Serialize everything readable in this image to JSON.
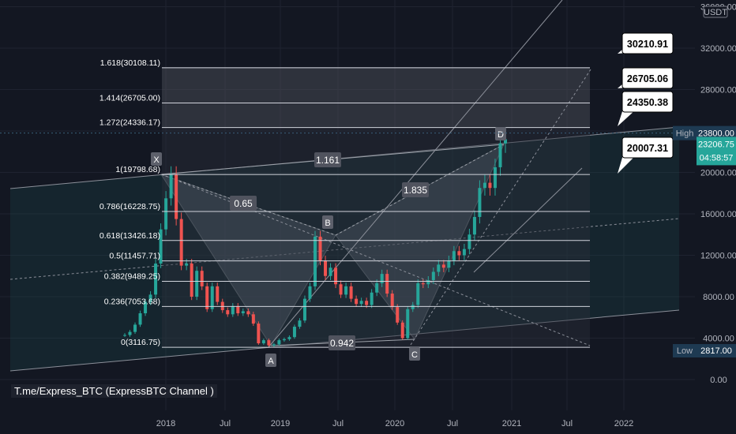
{
  "chart_data": {
    "type": "line",
    "currency": "USDT",
    "y_axis": {
      "min": 0,
      "max": 36000,
      "ticks": [
        "0.00",
        "4000.00",
        "8000.00",
        "12000.00",
        "16000.00",
        "20000.00",
        "24000.00",
        "28000.00",
        "32000.00",
        "36000.00"
      ],
      "values": [
        0,
        4000,
        8000,
        12000,
        16000,
        20000,
        24000,
        28000,
        32000,
        36000
      ]
    },
    "x_axis": {
      "ticks": [
        "2018",
        "Jul",
        "2019",
        "Jul",
        "2020",
        "Jul",
        "2021",
        "Jul",
        "2022"
      ]
    },
    "series": [
      {
        "values": [
          4300,
          4600,
          5300,
          6400,
          7500,
          8200,
          11200,
          14500,
          17500,
          19800,
          15500,
          11000,
          11200,
          8000,
          10500,
          9000,
          6800,
          9000,
          7500,
          6700,
          6300,
          7100,
          6400,
          6600,
          6300,
          5400,
          3500,
          3800,
          3300,
          3400,
          3800,
          3900,
          4100,
          5100,
          5700,
          7800,
          9000,
          13800,
          11500,
          10000,
          10800,
          9200,
          8200,
          9000,
          7800,
          7300,
          7600,
          7200,
          8400,
          9300,
          10200,
          8300,
          7000,
          5500,
          4000,
          6800,
          7200,
          9300,
          9200,
          9600,
          10400,
          11100,
          10800,
          11500,
          12400,
          12000,
          12600,
          14000,
          15700,
          18500,
          19000,
          18500,
          20500,
          22800,
          23200
        ]
      }
    ],
    "fibonacci": [
      {
        "label": "0(3116.75)",
        "value": 3116.75
      },
      {
        "label": "0.236(7053.68)",
        "value": 7053.68
      },
      {
        "label": "0.382(9489.25)",
        "value": 9489.25
      },
      {
        "label": "0.5(11457.71)",
        "value": 11457.71
      },
      {
        "label": "0.618(13426.18)",
        "value": 13426.18
      },
      {
        "label": "0.786(16228.75)",
        "value": 16228.75
      },
      {
        "label": "1(19798.68)",
        "value": 19798.68
      },
      {
        "label": "1.272(24336.17)",
        "value": 24336.17
      },
      {
        "label": "1.414(26705.00)",
        "value": 26705.0
      },
      {
        "label": "1.618(30108.11)",
        "value": 30108.11
      }
    ],
    "pattern_points": [
      {
        "name": "X",
        "value": 19798
      },
      {
        "name": "A",
        "value": 3200
      },
      {
        "name": "B",
        "value": 13800
      },
      {
        "name": "C",
        "value": 3850
      },
      {
        "name": "D",
        "value": 23600
      }
    ],
    "ratios": [
      "0.65",
      "0.942",
      "1.161",
      "1.835"
    ],
    "callouts": [
      "30210.91",
      "26705.06",
      "24350.38",
      "20007.31"
    ],
    "price_badges": {
      "high_label": "High",
      "high_value": "23800.00",
      "current_value": "23206.75",
      "countdown": "04:58:57",
      "low_label": "Low",
      "low_value": "2817.00"
    },
    "annotations": {
      "channel_text": "T.me/Express_BTC  (ExpressBTC Channel )"
    }
  }
}
